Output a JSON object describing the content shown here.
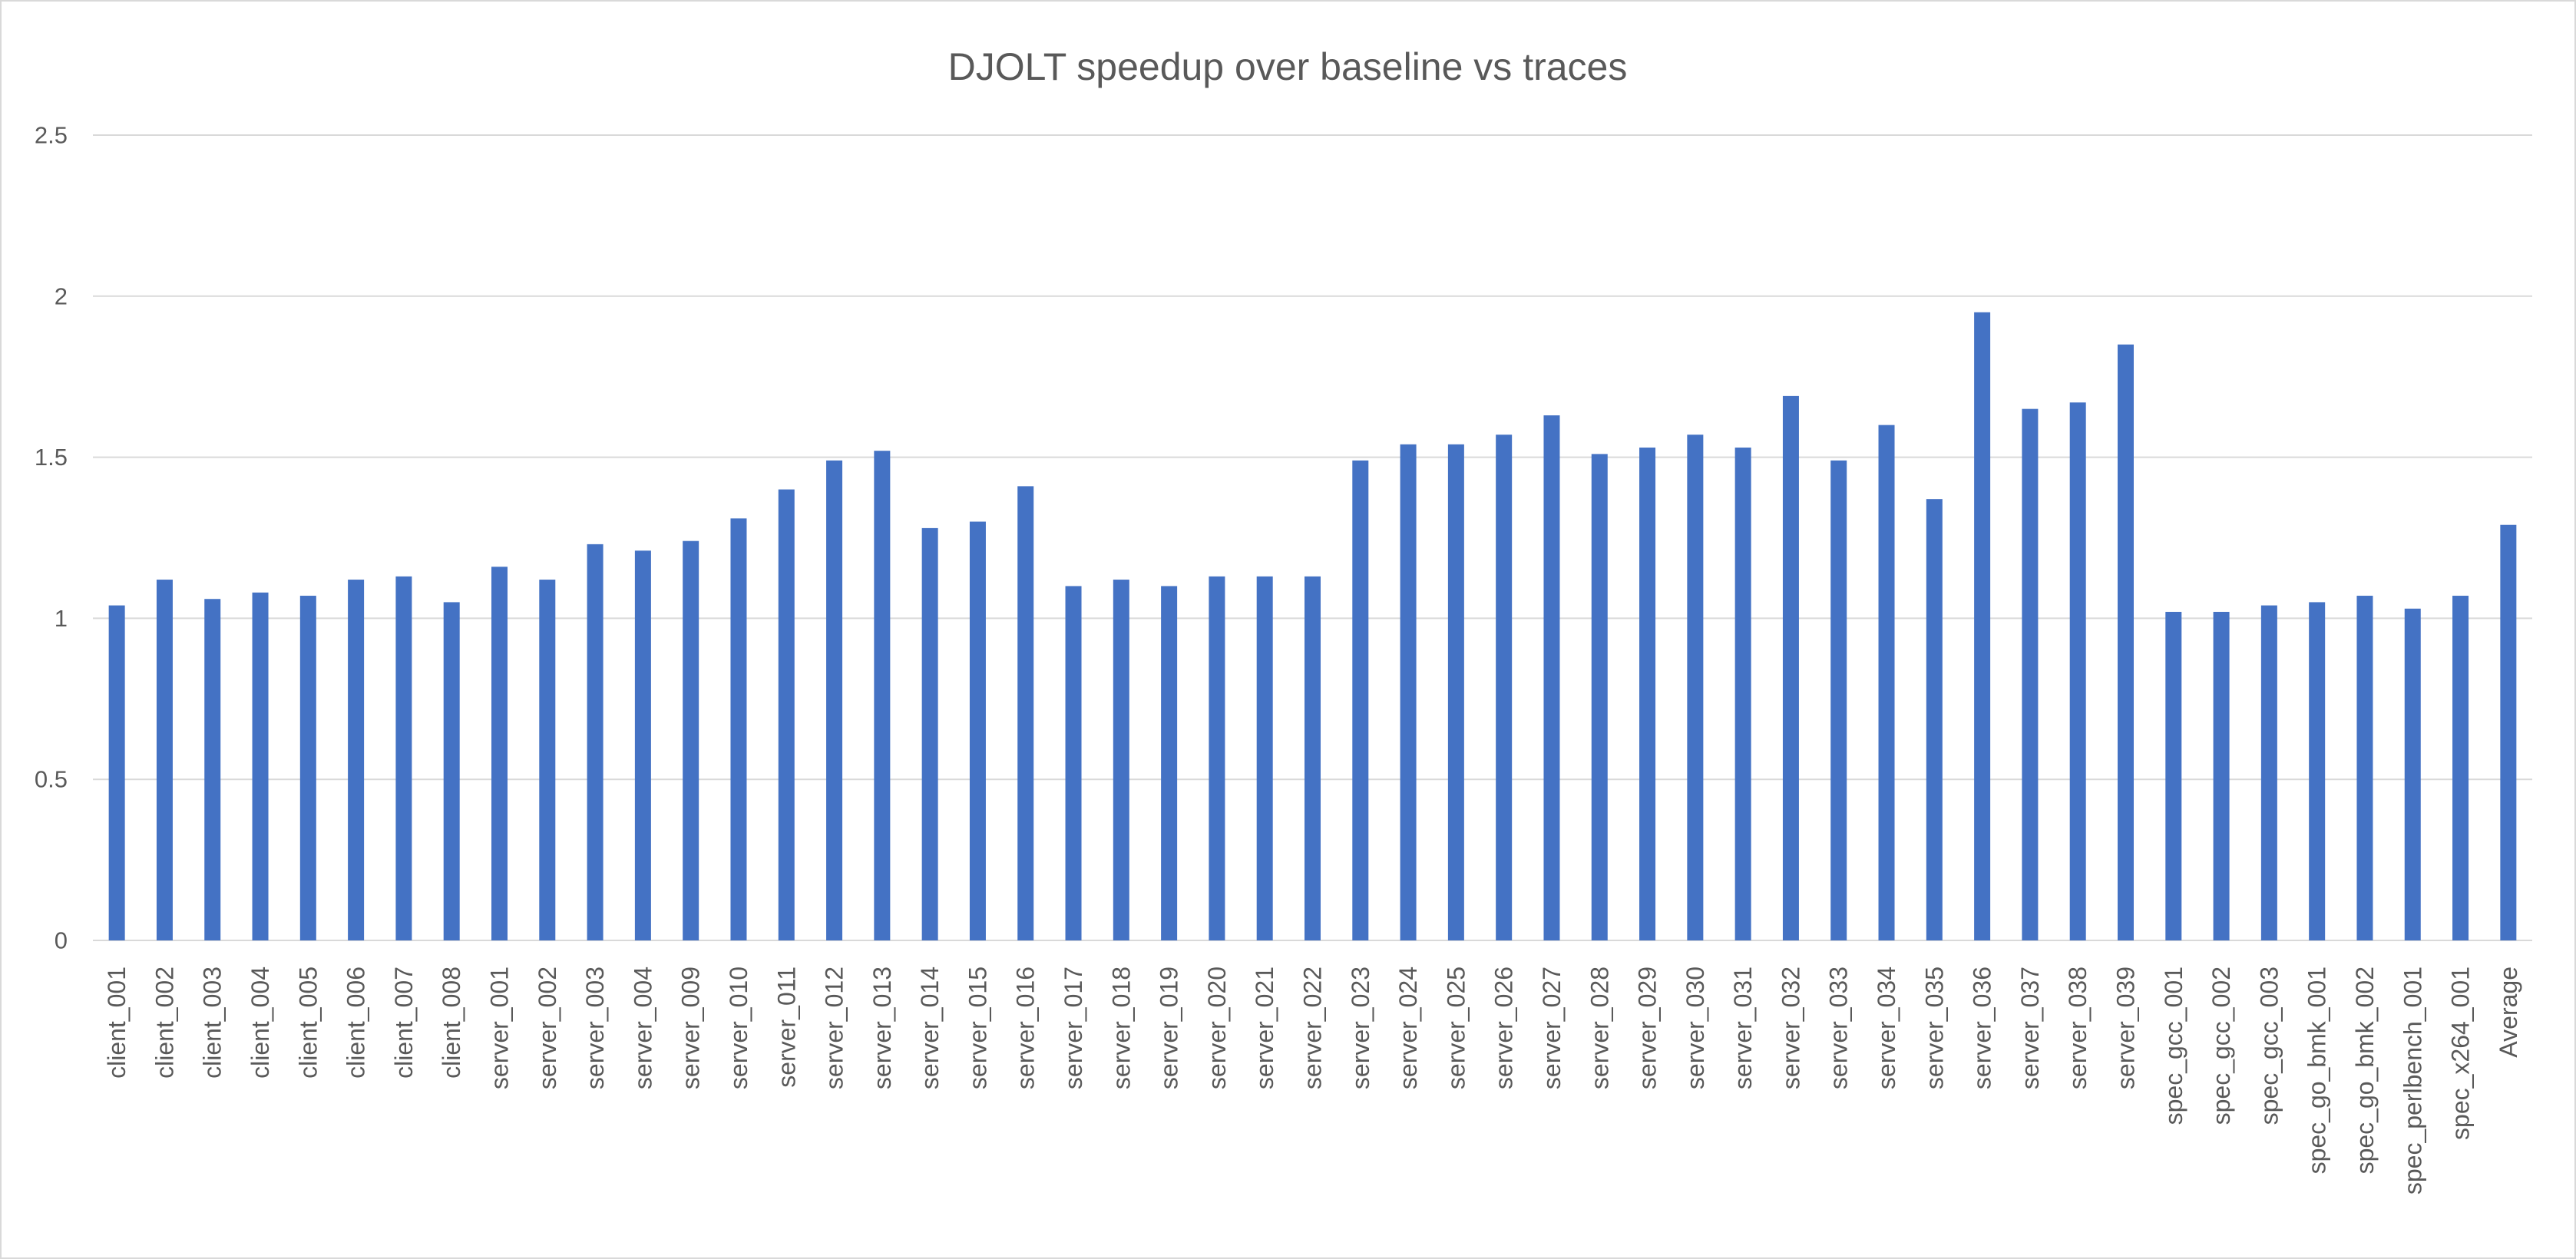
{
  "chart_data": {
    "type": "bar",
    "title": "DJOLT speedup over baseline vs traces",
    "categories": [
      "client_001",
      "client_002",
      "client_003",
      "client_004",
      "client_005",
      "client_006",
      "client_007",
      "client_008",
      "server_001",
      "server_002",
      "server_003",
      "server_004",
      "server_009",
      "server_010",
      "server_011",
      "server_012",
      "server_013",
      "server_014",
      "server_015",
      "server_016",
      "server_017",
      "server_018",
      "server_019",
      "server_020",
      "server_021",
      "server_022",
      "server_023",
      "server_024",
      "server_025",
      "server_026",
      "server_027",
      "server_028",
      "server_029",
      "server_030",
      "server_031",
      "server_032",
      "server_033",
      "server_034",
      "server_035",
      "server_036",
      "server_037",
      "server_038",
      "server_039",
      "spec_gcc_001",
      "spec_gcc_002",
      "spec_gcc_003",
      "spec_go_bmk_001",
      "spec_go_bmk_002",
      "spec_perlbench_001",
      "spec_x264_001",
      "Average"
    ],
    "values": [
      1.04,
      1.12,
      1.06,
      1.08,
      1.07,
      1.12,
      1.13,
      1.05,
      1.16,
      1.12,
      1.23,
      1.21,
      1.24,
      1.31,
      1.4,
      1.49,
      1.52,
      1.28,
      1.3,
      1.41,
      1.1,
      1.12,
      1.1,
      1.13,
      1.13,
      1.13,
      1.49,
      1.54,
      1.54,
      1.57,
      1.63,
      1.51,
      1.53,
      1.57,
      1.53,
      1.69,
      1.49,
      1.6,
      1.37,
      1.95,
      1.65,
      1.67,
      1.85,
      1.02,
      1.02,
      1.04,
      1.05,
      1.07,
      1.03,
      1.07,
      1.29
    ],
    "ylim": [
      0,
      2.5
    ],
    "ytick_labels": [
      "0",
      "0.5",
      "1",
      "1.5",
      "2",
      "2.5"
    ],
    "grid": "horizontal",
    "legend": "none",
    "bar_color": "#4472C4"
  }
}
